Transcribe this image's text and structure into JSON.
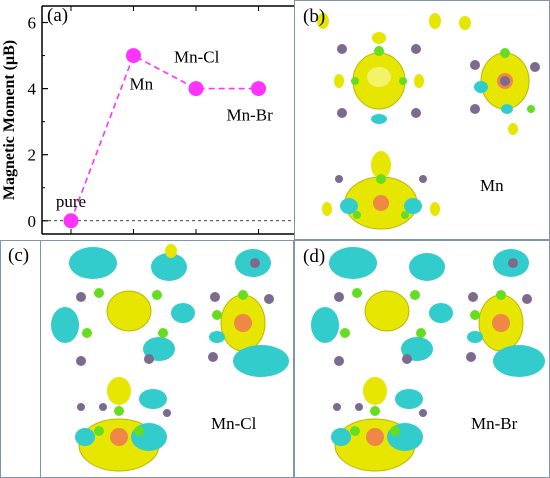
{
  "chart_data": {
    "type": "line",
    "categories": [
      "pure",
      "Mn",
      "Mn-Cl",
      "Mn-Br"
    ],
    "values": [
      0,
      5,
      4,
      4
    ],
    "point_labels": [
      "pure",
      "Mn",
      "Mn-Cl",
      "Mn-Br"
    ],
    "ylabel": "Magnetic Moment (μB)",
    "ylim": [
      -0.4,
      6.5
    ],
    "yticks": [
      0,
      2,
      4,
      6
    ],
    "reference_line": 0,
    "grid": false,
    "legend": "none",
    "colors": {
      "series": "#ff33ff",
      "marker": "#ff33ff",
      "reference": "#000000"
    }
  },
  "panels": {
    "a": {
      "label": "(a)"
    },
    "b": {
      "label": "(b)",
      "caption": "Mn"
    },
    "c": {
      "label": "(c)",
      "caption": "Mn-Cl"
    },
    "d": {
      "label": "(d)",
      "caption": "Mn-Br"
    }
  },
  "colors": {
    "frame": "#7f96ad",
    "isosurface_yellow": "#e6e600",
    "isosurface_cyan": "#33cccc",
    "atom_green": "#66dd22",
    "atom_purple": "#7d6b8f",
    "atom_orange": "#ee8844"
  }
}
